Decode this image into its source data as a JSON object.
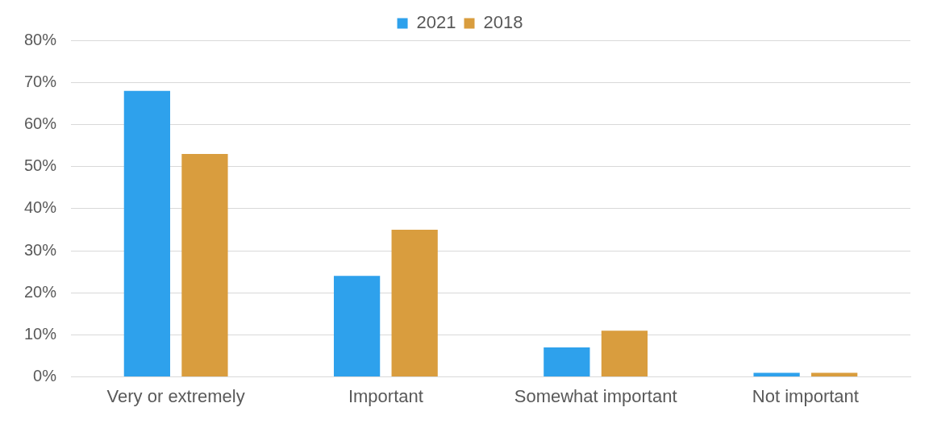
{
  "chart_data": {
    "type": "bar",
    "categories": [
      "Very or extremely",
      "Important",
      "Somewhat important",
      "Not important"
    ],
    "series": [
      {
        "name": "2021",
        "color": "#2ea1ec",
        "values": [
          68,
          24,
          7,
          1
        ]
      },
      {
        "name": "2018",
        "color": "#d99d3e",
        "values": [
          53,
          35,
          11,
          1
        ]
      }
    ],
    "ylim": [
      0,
      80
    ],
    "yticks": [
      {
        "value": 0,
        "label": "0%"
      },
      {
        "value": 10,
        "label": "10%"
      },
      {
        "value": 20,
        "label": "20%"
      },
      {
        "value": 30,
        "label": "30%"
      },
      {
        "value": 40,
        "label": "40%"
      },
      {
        "value": 50,
        "label": "50%"
      },
      {
        "value": 60,
        "label": "60%"
      },
      {
        "value": 70,
        "label": "70%"
      },
      {
        "value": 80,
        "label": "80%"
      }
    ],
    "grid": "y",
    "legend": "top"
  }
}
